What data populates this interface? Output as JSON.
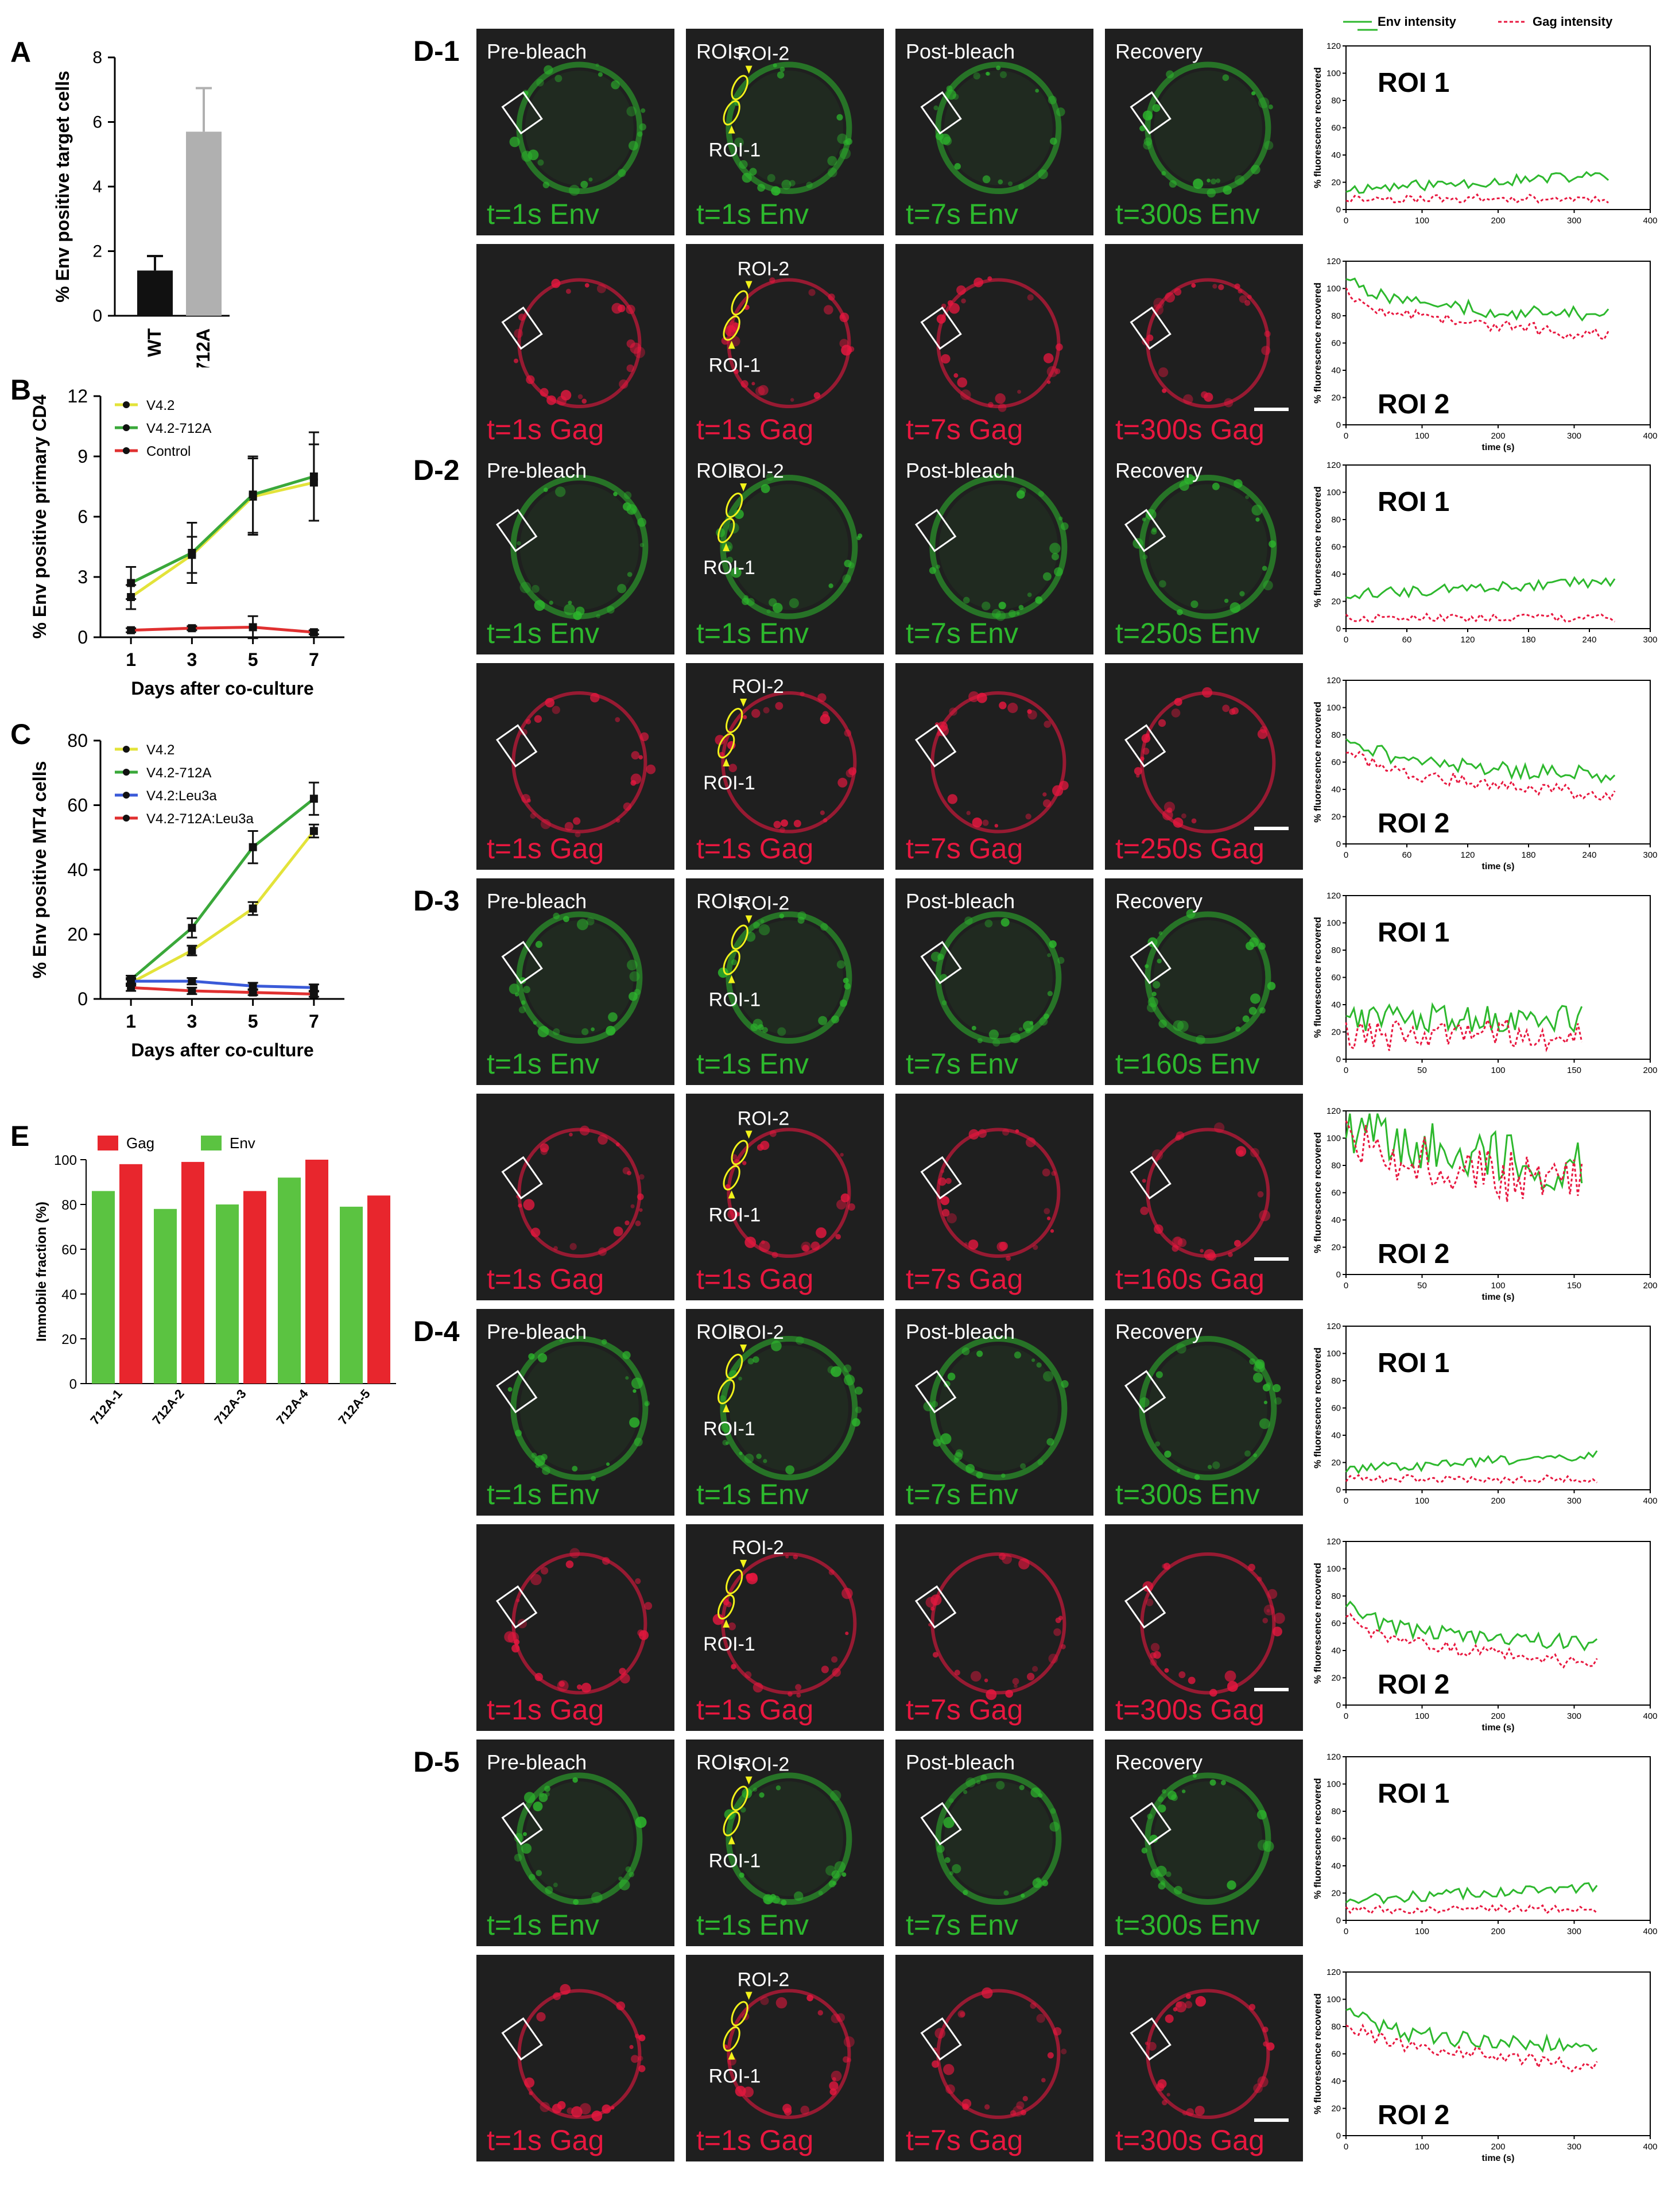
{
  "panel_labels": {
    "A": "A",
    "B": "B",
    "C": "C",
    "E": "E"
  },
  "micro_labels": {
    "pre": "Pre-bleach",
    "rois": "ROIs",
    "post": "Post-bleach",
    "rec": "Recovery",
    "roi1": "ROI-1",
    "roi2": "ROI-2"
  },
  "frap_legend": {
    "env": "Env intensity",
    "gag": "Gag intensity"
  },
  "colors": {
    "env": "#2db82d",
    "gag": "#e8173f",
    "yellow": "#f2f21a",
    "grey": "#b0b0b0",
    "dark": "#1f1f1f"
  },
  "frap_axis": {
    "ylabel": "% fluorescence recovered",
    "xlabel": "time (s)",
    "roi1": "ROI 1",
    "roi2": "ROI 2"
  },
  "rows": [
    {
      "id": "D-1",
      "times": [
        "t=1s Env",
        "t=1s Env",
        "t=7s Env",
        "t=300s Env"
      ],
      "gtimes": [
        "t=1s Gag",
        "t=1s Gag",
        "t=7s Gag",
        "t=300s Gag"
      ],
      "xmax": 400,
      "xticks": [
        0,
        100,
        200,
        300,
        400
      ],
      "dur": 345
    },
    {
      "id": "D-2",
      "times": [
        "t=1s Env",
        "t=1s Env",
        "t=7s Env",
        "t=250s Env"
      ],
      "gtimes": [
        "t=1s Gag",
        "t=1s Gag",
        "t=7s Gag",
        "t=250s Gag"
      ],
      "xmax": 300,
      "xticks": [
        0,
        60,
        120,
        180,
        240,
        300
      ],
      "dur": 265
    },
    {
      "id": "D-3",
      "times": [
        "t=1s Env",
        "t=1s Env",
        "t=7s Env",
        "t=160s Env"
      ],
      "gtimes": [
        "t=1s Gag",
        "t=1s Gag",
        "t=7s Gag",
        "t=160s Gag"
      ],
      "xmax": 200,
      "xticks": [
        0,
        50,
        100,
        150,
        200
      ],
      "dur": 155
    },
    {
      "id": "D-4",
      "times": [
        "t=1s Env",
        "t=1s Env",
        "t=7s Env",
        "t=300s Env"
      ],
      "gtimes": [
        "t=1s Gag",
        "t=1s Gag",
        "t=7s Gag",
        "t=300s Gag"
      ],
      "xmax": 400,
      "xticks": [
        0,
        100,
        200,
        300,
        400
      ],
      "dur": 330
    },
    {
      "id": "D-5",
      "times": [
        "t=1s Env",
        "t=1s Env",
        "t=7s Env",
        "t=300s Env"
      ],
      "gtimes": [
        "t=1s Gag",
        "t=1s Gag",
        "t=7s Gag",
        "t=300s Gag"
      ],
      "xmax": 400,
      "xticks": [
        0,
        100,
        200,
        300,
        400
      ],
      "dur": 330
    }
  ],
  "chart_data": [
    {
      "panel": "A",
      "type": "bar",
      "categories": [
        "WT",
        "712A"
      ],
      "values": [
        1.4,
        5.7
      ],
      "errors": [
        0.45,
        1.35
      ],
      "ylabel": "% Env positive target cells",
      "ylim": [
        0,
        8
      ],
      "yticks": [
        0,
        2,
        4,
        6,
        8
      ]
    },
    {
      "panel": "B",
      "type": "line",
      "x": [
        1,
        3,
        5,
        7
      ],
      "xlabel": "Days after co-culture",
      "ylabel": "% Env positive primary CD4",
      "ylim": [
        0,
        12
      ],
      "yticks": [
        0,
        3,
        6,
        9,
        12
      ],
      "legend_position": "top-left",
      "series": [
        {
          "name": "V4.2",
          "values": [
            2.0,
            4.1,
            7.0,
            7.7
          ],
          "errors": [
            0.6,
            0.9,
            1.9,
            1.9
          ],
          "color": "#e3e33a"
        },
        {
          "name": "V4.2-712A",
          "values": [
            2.7,
            4.2,
            7.1,
            8.0
          ],
          "errors": [
            0.8,
            1.5,
            1.9,
            2.2
          ],
          "color": "#3aa83a"
        },
        {
          "name": "Control",
          "values": [
            0.35,
            0.45,
            0.5,
            0.25
          ],
          "errors": [
            0.1,
            0.1,
            0.55,
            0.1
          ],
          "color": "#e03030"
        }
      ]
    },
    {
      "panel": "C",
      "type": "line",
      "x": [
        1,
        3,
        5,
        7
      ],
      "xlabel": "Days after co-culture",
      "ylabel": "% Env positive MT4 cells",
      "ylim": [
        0,
        80
      ],
      "yticks": [
        0,
        20,
        40,
        60,
        80
      ],
      "legend_position": "top-left",
      "series": [
        {
          "name": "V4.2",
          "values": [
            5,
            15,
            28,
            52
          ],
          "errors": [
            1,
            1.5,
            2,
            2
          ],
          "color": "#e3e33a"
        },
        {
          "name": "V4.2-712A",
          "values": [
            6,
            22,
            47,
            62
          ],
          "errors": [
            1.2,
            3,
            5,
            5
          ],
          "color": "#3aa83a"
        },
        {
          "name": "V4.2:Leu3a",
          "values": [
            5.5,
            5.5,
            4,
            3.5
          ],
          "errors": [
            1,
            1,
            1,
            1
          ],
          "color": "#3a5ad8"
        },
        {
          "name": "V4.2-712A:Leu3a",
          "values": [
            3.5,
            2.5,
            2,
            1.5
          ],
          "errors": [
            1,
            1,
            0.8,
            0.8
          ],
          "color": "#e03030"
        }
      ]
    },
    {
      "panel": "E",
      "type": "bar",
      "categories": [
        "712A-1",
        "712A-2",
        "712A-3",
        "712A-4",
        "712A-5"
      ],
      "ylabel": "Immobile fraction (%)",
      "ylim": [
        0,
        100
      ],
      "yticks": [
        0,
        20,
        40,
        60,
        80,
        100
      ],
      "legend_position": "top-left",
      "series": [
        {
          "name": "Gag",
          "values": [
            98,
            99,
            86,
            100,
            84
          ],
          "color": "#e8262d"
        },
        {
          "name": "Env",
          "values": [
            86,
            78,
            80,
            92,
            79
          ],
          "color": "#5bc341"
        }
      ]
    }
  ]
}
